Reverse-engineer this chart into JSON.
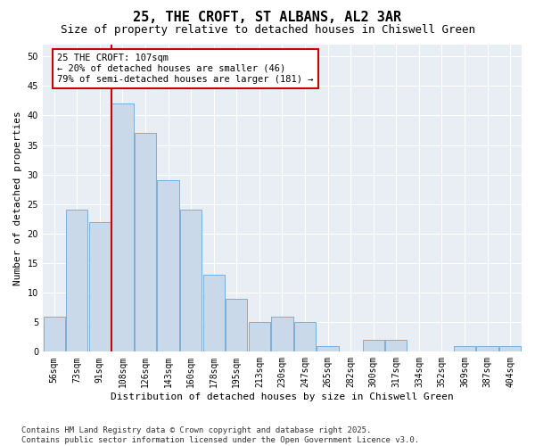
{
  "title": "25, THE CROFT, ST ALBANS, AL2 3AR",
  "subtitle": "Size of property relative to detached houses in Chiswell Green",
  "xlabel": "Distribution of detached houses by size in Chiswell Green",
  "ylabel": "Number of detached properties",
  "categories": [
    "56sqm",
    "73sqm",
    "91sqm",
    "108sqm",
    "126sqm",
    "143sqm",
    "160sqm",
    "178sqm",
    "195sqm",
    "213sqm",
    "230sqm",
    "247sqm",
    "265sqm",
    "282sqm",
    "300sqm",
    "317sqm",
    "334sqm",
    "352sqm",
    "369sqm",
    "387sqm",
    "404sqm"
  ],
  "values": [
    6,
    24,
    22,
    42,
    37,
    29,
    24,
    13,
    9,
    5,
    6,
    5,
    1,
    0,
    2,
    2,
    0,
    0,
    1,
    1,
    1
  ],
  "bar_color": "#c9d9ea",
  "bar_edge_color": "#7bafd4",
  "vline_color": "#cc0000",
  "annotation_text": "25 THE CROFT: 107sqm\n← 20% of detached houses are smaller (46)\n79% of semi-detached houses are larger (181) →",
  "annotation_box_color": "#cc0000",
  "ylim": [
    0,
    52
  ],
  "yticks": [
    0,
    5,
    10,
    15,
    20,
    25,
    30,
    35,
    40,
    45,
    50
  ],
  "background_color": "#e8eef4",
  "grid_color": "#ffffff",
  "footer": "Contains HM Land Registry data © Crown copyright and database right 2025.\nContains public sector information licensed under the Open Government Licence v3.0.",
  "title_fontsize": 11,
  "subtitle_fontsize": 9,
  "xlabel_fontsize": 8,
  "ylabel_fontsize": 8,
  "tick_fontsize": 7,
  "annotation_fontsize": 7.5,
  "footer_fontsize": 6.5
}
